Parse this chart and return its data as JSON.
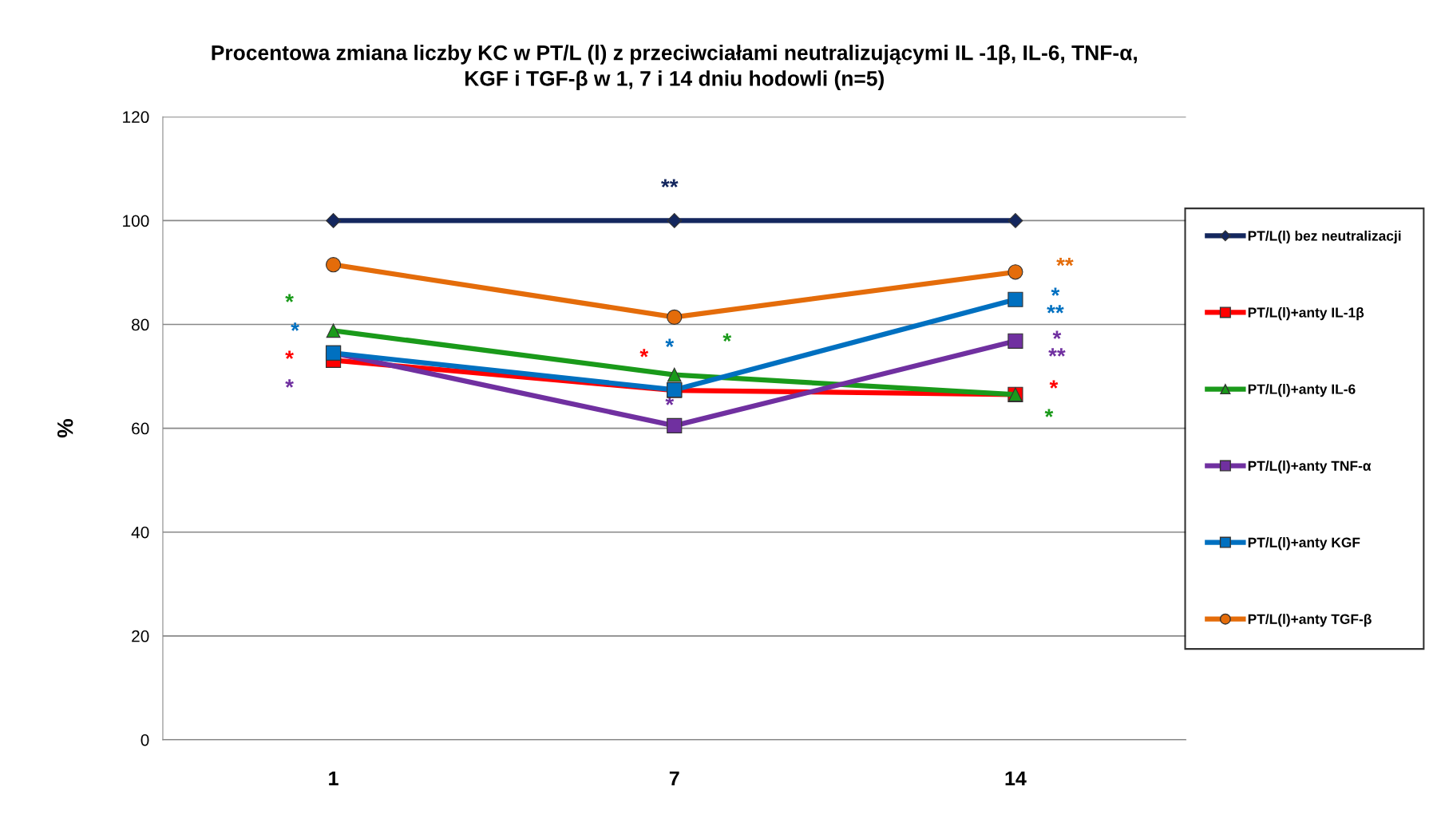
{
  "chart_data": {
    "type": "line",
    "title": "Procentowa zmiana liczby KC w PT/L (l) z przeciwciałami neutralizującymi IL -1β, IL-6, TNF-α,\nKGF i TGF-β w 1, 7 i 14 dniu hodowli (n=5)",
    "ylabel": "%",
    "categories": [
      "1",
      "7",
      "14"
    ],
    "ylim": [
      0,
      120
    ],
    "yticks": [
      0,
      20,
      40,
      60,
      80,
      100,
      120
    ],
    "grid": "y",
    "legend": "right",
    "series": [
      {
        "name": "PT/L(l) bez neutralizacji",
        "color": "#14275e",
        "marker": "diamond",
        "values": [
          100,
          100,
          100
        ],
        "value_labels": [
          null,
          "**",
          null
        ]
      },
      {
        "name": "PT/L(l)+anty IL-1β",
        "color": "#ff0000",
        "marker": "square",
        "values": [
          73.1,
          67.3,
          66.5
        ],
        "value_labels": [
          "*",
          "*",
          "*"
        ]
      },
      {
        "name": "PT/L(l)+anty IL-6",
        "color": "#1a9a1a",
        "marker": "triangle",
        "values": [
          78.8,
          70.3,
          66.5
        ],
        "value_labels": [
          "*",
          "*",
          "*"
        ]
      },
      {
        "name": "PT/L(l)+anty TNF-α",
        "color": "#7030a0",
        "marker": "square",
        "values": [
          74.5,
          60.5,
          76.8
        ],
        "value_labels": [
          "*",
          "*",
          "*\n**"
        ]
      },
      {
        "name": "PT/L(l)+anty KGF",
        "color": "#0070c0",
        "marker": "square",
        "values": [
          74.5,
          67.4,
          84.8
        ],
        "value_labels": [
          "*",
          "*",
          "*\n**"
        ]
      },
      {
        "name": "PT/L(l)+anty TGF-β",
        "color": "#e46c0a",
        "marker": "circle",
        "values": [
          91.5,
          81.4,
          90.1
        ],
        "value_labels": [
          null,
          null,
          "**"
        ]
      }
    ]
  }
}
